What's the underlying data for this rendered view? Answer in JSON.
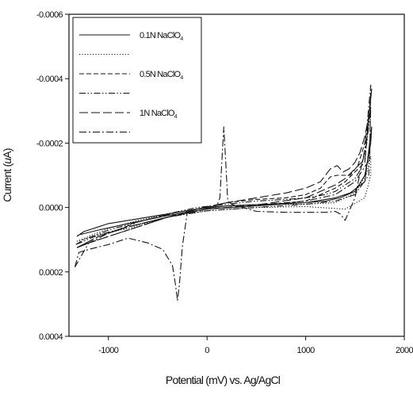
{
  "chart_data": {
    "type": "line",
    "xlabel": "Potential (mV) vs. Ag/AgCl",
    "ylabel_prefix": "Current (",
    "ylabel_unit": "u",
    "ylabel_suffix": "A)",
    "xlim": [
      -1400,
      2000
    ],
    "ylim": [
      0.0004,
      -0.0006
    ],
    "y_axis_inverted": true,
    "x_ticks": [
      -1000,
      0,
      1000,
      2000
    ],
    "x_tick_labels": [
      "-1000",
      "0",
      "1000",
      "2000"
    ],
    "y_ticks": [
      -0.0006,
      -0.0004,
      -0.0002,
      0.0,
      0.0002,
      0.0004
    ],
    "y_tick_labels": [
      "-0.0006",
      "-0.0004",
      "-0.0002",
      "0.0000",
      "0.0002",
      "0.0004"
    ],
    "grid": false,
    "legend_position": "top-left",
    "legend": [
      {
        "label": "0.1N NaClO",
        "subscript": "4"
      },
      {
        "label": "",
        "subscript": ""
      },
      {
        "label": "0.5N NaClO",
        "subscript": "4"
      },
      {
        "label": "",
        "subscript": ""
      },
      {
        "label": "1N NaClO",
        "subscript": "4"
      },
      {
        "label": "",
        "subscript": ""
      }
    ],
    "series": [
      {
        "style": "solid",
        "x": [
          -1320,
          -1250,
          -1000,
          -700,
          -400,
          -100,
          200,
          600,
          1000,
          1200,
          1350,
          1500,
          1600,
          1660,
          1670,
          1600,
          1450,
          1300,
          1000,
          500,
          0,
          -400,
          -800,
          -1100,
          -1300,
          -1320
        ],
        "y": [
          9e-05,
          7.5e-05,
          5e-05,
          3.5e-05,
          2e-05,
          5e-06,
          -5e-06,
          -1e-05,
          -1.5e-05,
          -2e-05,
          -3e-05,
          -5e-05,
          -0.0001,
          -0.0002,
          -0.00025,
          -8e-05,
          -4.5e-05,
          -3e-05,
          -1.5e-05,
          -5e-06,
          5e-06,
          2.5e-05,
          5e-05,
          7e-05,
          8.5e-05,
          9e-05
        ]
      },
      {
        "style": "dotted",
        "x": [
          -1320,
          -1200,
          -1000,
          -700,
          -400,
          -100,
          200,
          600,
          1000,
          1300,
          1500,
          1620,
          1660,
          1660,
          1600,
          1400,
          1000,
          500,
          0,
          -400,
          -800,
          -1100,
          -1320
        ],
        "y": [
          0.000105,
          9e-05,
          6.5e-05,
          4e-05,
          2e-05,
          5e-06,
          -5e-06,
          -1e-05,
          -1e-05,
          -1.5e-05,
          -4.5e-05,
          -0.000105,
          -0.00016,
          -0.0001,
          -3e-05,
          5e-06,
          -3e-06,
          0.0,
          1e-05,
          3e-05,
          6.5e-05,
          8.5e-05,
          0.000105
        ]
      },
      {
        "style": "dashed",
        "x": [
          -1320,
          -1200,
          -1000,
          -700,
          -400,
          -100,
          200,
          500,
          800,
          1000,
          1150,
          1250,
          1320,
          1400,
          1450,
          1530,
          1600,
          1650,
          1660,
          1600,
          1500,
          1400,
          1300,
          1000,
          500,
          0,
          -400,
          -800,
          -1100,
          -1320
        ],
        "y": [
          0.000125,
          0.00011,
          9e-05,
          6e-05,
          3e-05,
          5e-06,
          -1.5e-05,
          -2.5e-05,
          -3e-05,
          -4e-05,
          -6e-05,
          -9.5e-05,
          -0.0001,
          -0.0001,
          -0.0001,
          -0.00013,
          -0.0002,
          -0.0003,
          -0.00035,
          -0.00014,
          -0.00011,
          -8e-05,
          -6e-05,
          -2e-05,
          -5e-06,
          5e-06,
          3e-05,
          6e-05,
          9e-05,
          0.000125
        ]
      },
      {
        "style": "dash-dot-dot",
        "x": [
          -1330,
          -1250,
          -1000,
          -700,
          -400,
          -100,
          200,
          500,
          800,
          1000,
          1200,
          1300,
          1400,
          1500,
          1560,
          1620,
          1660,
          1640,
          1500,
          1300,
          1000,
          500,
          0,
          -400,
          -800,
          -1100,
          -1330
        ],
        "y": [
          0.000115,
          0.0001,
          7e-05,
          4.5e-05,
          2e-05,
          0.0,
          -1e-05,
          -2e-05,
          -2.5e-05,
          -3e-05,
          -4e-05,
          -5e-05,
          -7e-05,
          -9e-05,
          -0.00012,
          -0.0002,
          -0.00031,
          -0.0001,
          -4e-05,
          -2e-05,
          -1e-05,
          0.0,
          1e-05,
          3e-05,
          6e-05,
          8.5e-05,
          0.000115
        ]
      },
      {
        "style": "long-dash",
        "x": [
          -1320,
          -1200,
          -1000,
          -700,
          -400,
          -100,
          200,
          500,
          800,
          1000,
          1150,
          1250,
          1320,
          1380,
          1440,
          1500,
          1550,
          1600,
          1650,
          1670,
          1600,
          1500,
          1400,
          1300,
          1000,
          500,
          0,
          -400,
          -800,
          -1100,
          -1320
        ],
        "y": [
          0.000125,
          0.00011,
          9e-05,
          6e-05,
          3e-05,
          5e-06,
          -1.5e-05,
          -3e-05,
          -4.5e-05,
          -6e-05,
          -8e-05,
          -0.00012,
          -0.00013,
          -0.00011,
          -0.00012,
          -0.00014,
          -0.00017,
          -0.00022,
          -0.0003,
          -0.00037,
          -0.00015,
          -0.00012,
          -9e-05,
          -7e-05,
          -3e-05,
          -8e-06,
          5e-06,
          3e-05,
          6e-05,
          9e-05,
          0.000125
        ]
      },
      {
        "style": "dash-dot",
        "x": [
          -1340,
          -1300,
          -1200,
          -1000,
          -800,
          -600,
          -450,
          -350,
          -320,
          -300,
          -280,
          -250,
          -200,
          -100,
          0,
          100,
          130,
          150,
          170,
          190,
          210,
          250,
          500,
          800,
          1000,
          1200,
          1300,
          1350,
          1400,
          1500,
          1600,
          1660,
          1650,
          1500,
          1300,
          1000,
          600,
          200,
          0,
          -300,
          -700,
          -1000,
          -1200,
          -1340
        ],
        "y": [
          0.000185,
          0.00014,
          0.00013,
          0.000115,
          9.5e-05,
          0.00011,
          0.00013,
          0.00018,
          0.00024,
          0.00029,
          0.00024,
          0.00012,
          1.5e-05,
          5e-06,
          0.0,
          -5e-06,
          -3e-05,
          -0.00014,
          -0.00025,
          -0.00014,
          -2e-05,
          -1e-05,
          1.2e-05,
          1.5e-05,
          1.5e-05,
          1.5e-05,
          1.2e-05,
          2e-05,
          4e-05,
          -3e-05,
          -0.00018,
          -0.00038,
          -0.00015,
          -8e-05,
          -4e-05,
          -2e-05,
          -1e-05,
          -5e-06,
          0.0,
          1.5e-05,
          4.5e-05,
          8e-05,
          0.00011,
          0.000185
        ]
      }
    ]
  }
}
